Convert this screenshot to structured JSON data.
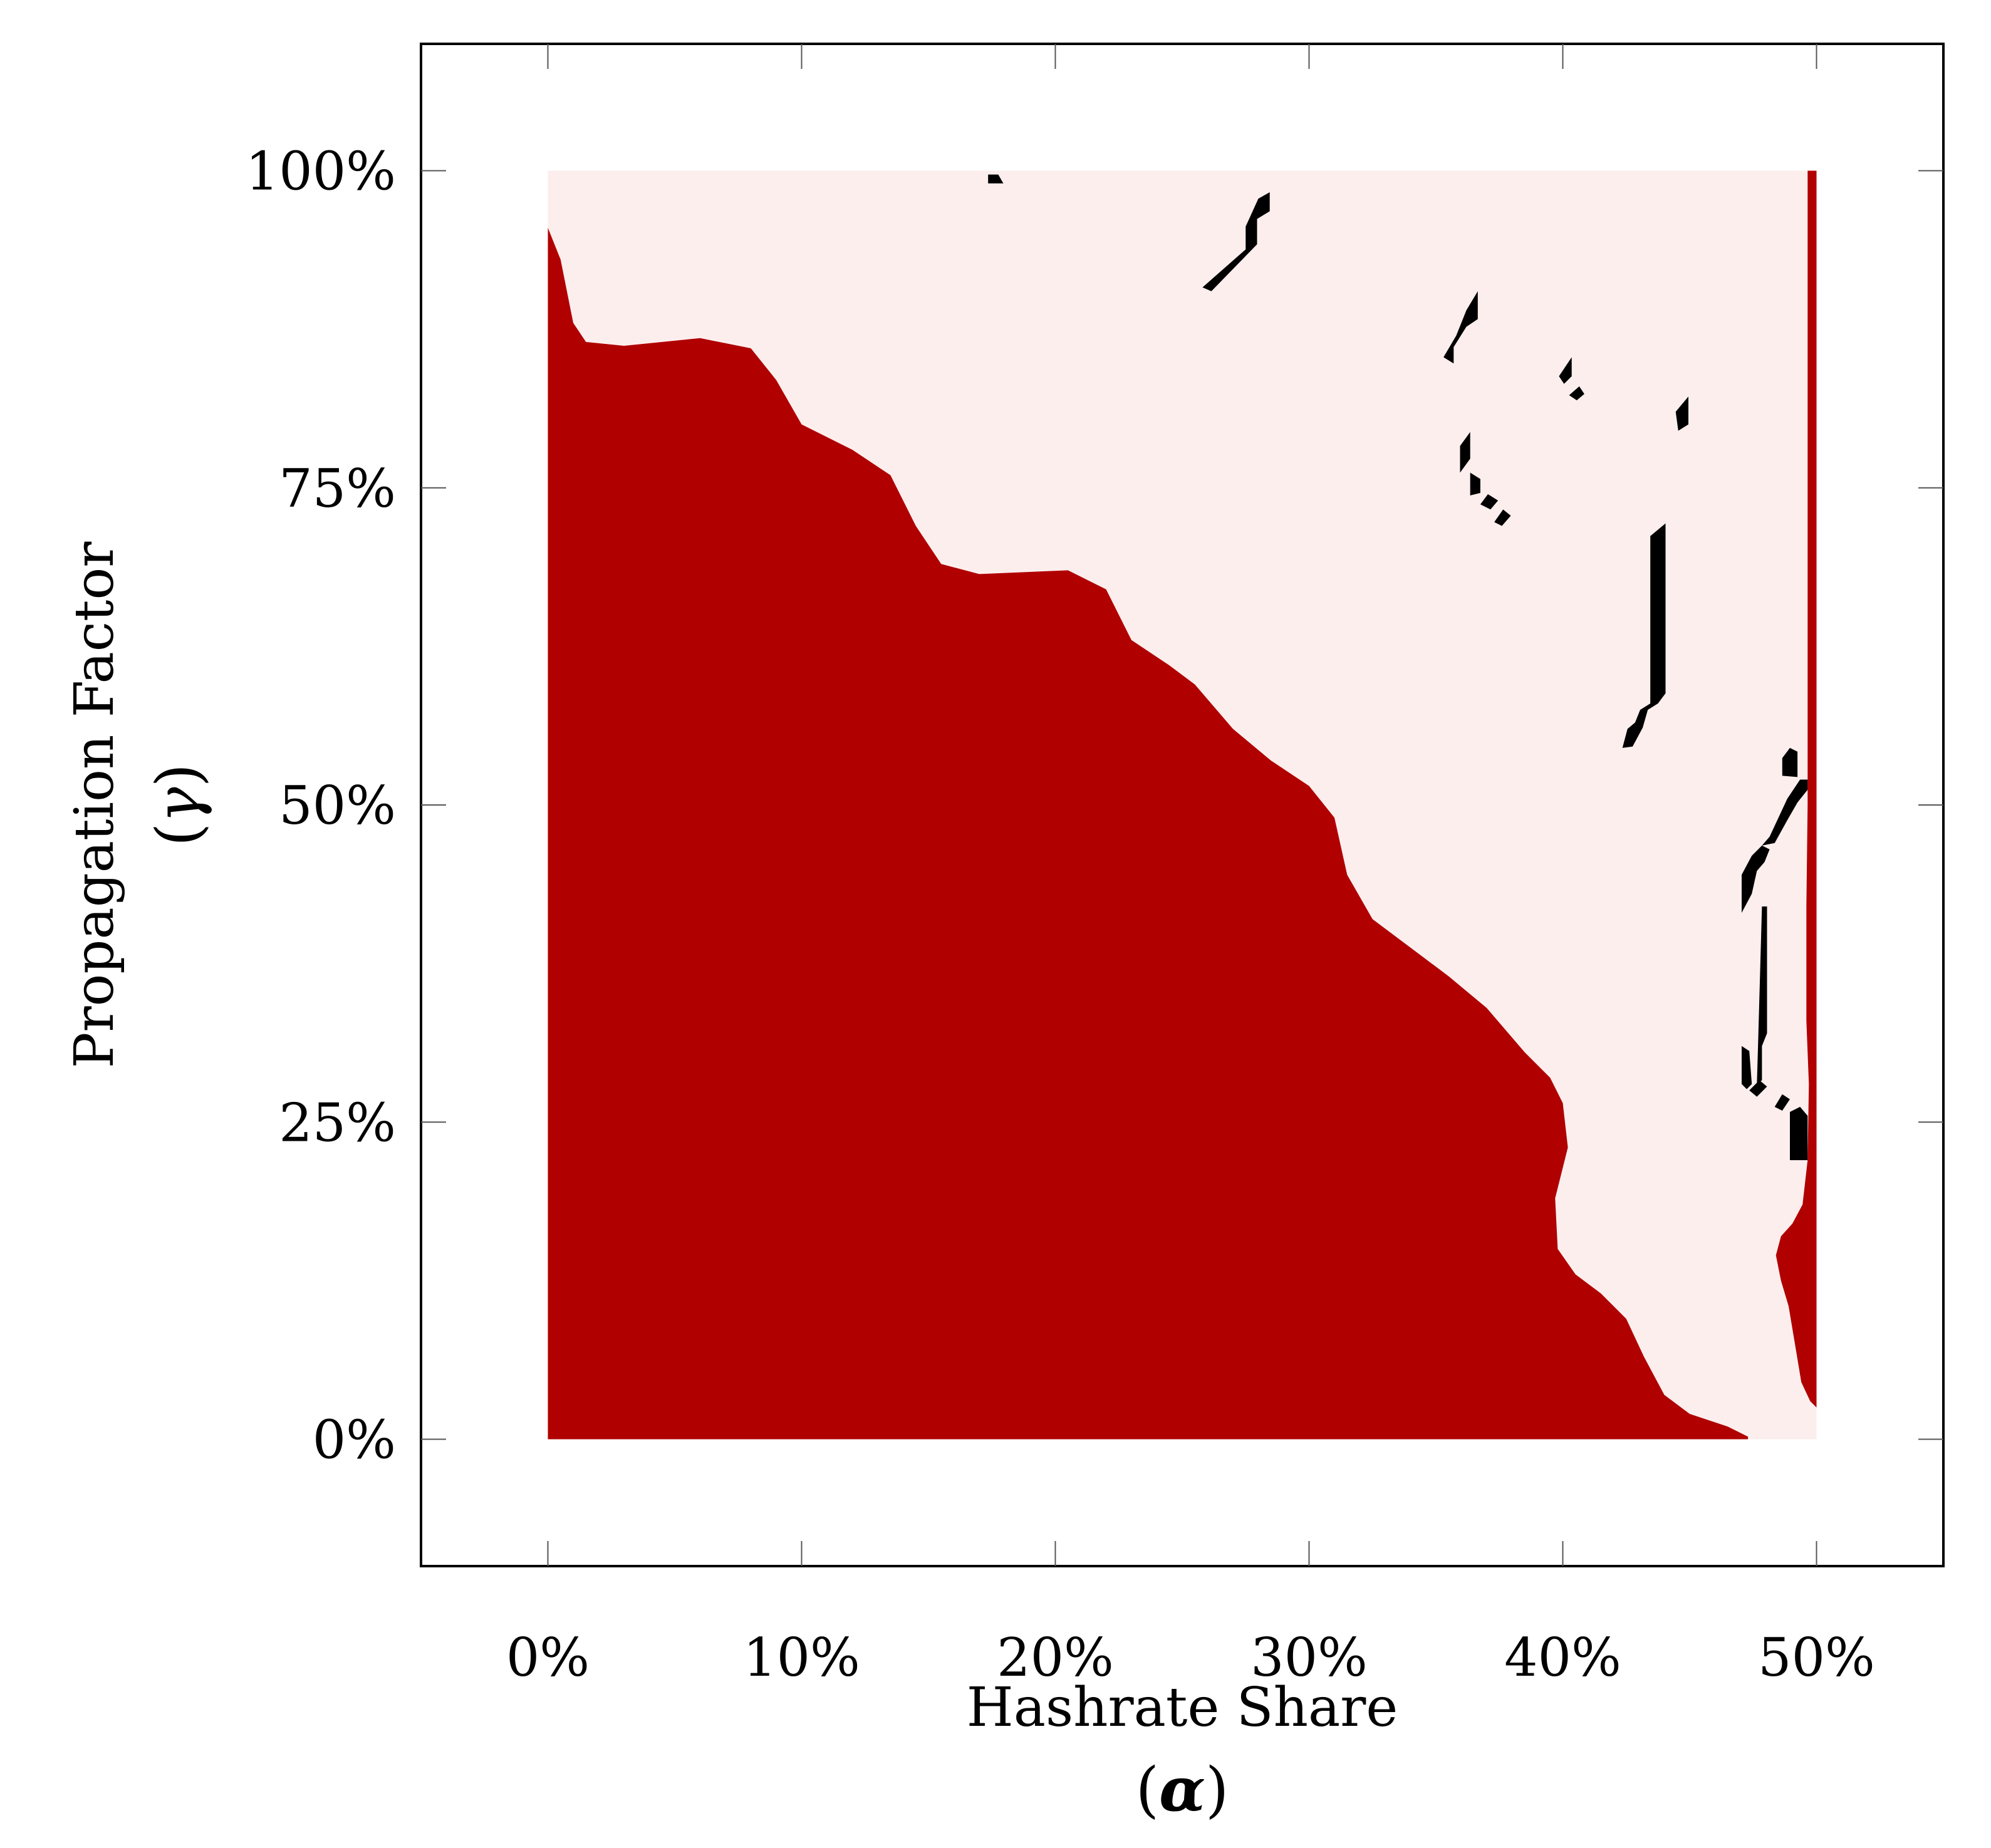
{
  "chart_data": {
    "type": "heatmap",
    "xlabel": "Hashrate Share",
    "xsymbol": "α",
    "ylabel": "Propagation Factor",
    "ysymbol": "γ",
    "xlim": [
      -0.05,
      0.55
    ],
    "ylim": [
      -0.1,
      1.1
    ],
    "x_ticks": [
      0,
      0.1,
      0.2,
      0.3,
      0.4,
      0.5
    ],
    "x_tick_labels": [
      "0%",
      "10%",
      "20%",
      "30%",
      "40%",
      "50%"
    ],
    "y_ticks": [
      0,
      0.25,
      0.5,
      0.75,
      1.0
    ],
    "y_tick_labels": [
      "0%",
      "25%",
      "50%",
      "75%",
      "100%"
    ],
    "grid": false,
    "colors": {
      "region_profitable": "#b00000",
      "region_unprofitable": "#fdeeee",
      "marker": "#000000"
    },
    "data_extent": {
      "x": [
        0,
        0.5
      ],
      "y": [
        0,
        1.0
      ]
    },
    "dark_region_boundary": [
      [
        0.0,
        0.955
      ],
      [
        0.005,
        0.93
      ],
      [
        0.01,
        0.88
      ],
      [
        0.015,
        0.865
      ],
      [
        0.03,
        0.862
      ],
      [
        0.06,
        0.868
      ],
      [
        0.08,
        0.86
      ],
      [
        0.09,
        0.835
      ],
      [
        0.1,
        0.8
      ],
      [
        0.12,
        0.78
      ],
      [
        0.135,
        0.76
      ],
      [
        0.145,
        0.72
      ],
      [
        0.155,
        0.69
      ],
      [
        0.17,
        0.682
      ],
      [
        0.205,
        0.685
      ],
      [
        0.22,
        0.67
      ],
      [
        0.23,
        0.63
      ],
      [
        0.245,
        0.61
      ],
      [
        0.255,
        0.595
      ],
      [
        0.27,
        0.56
      ],
      [
        0.285,
        0.535
      ],
      [
        0.3,
        0.515
      ],
      [
        0.31,
        0.49
      ],
      [
        0.315,
        0.445
      ],
      [
        0.325,
        0.41
      ],
      [
        0.335,
        0.395
      ],
      [
        0.345,
        0.38
      ],
      [
        0.355,
        0.365
      ],
      [
        0.37,
        0.34
      ],
      [
        0.385,
        0.305
      ],
      [
        0.395,
        0.285
      ],
      [
        0.4,
        0.265
      ],
      [
        0.402,
        0.23
      ],
      [
        0.397,
        0.19
      ],
      [
        0.398,
        0.15
      ],
      [
        0.405,
        0.13
      ],
      [
        0.415,
        0.115
      ],
      [
        0.425,
        0.095
      ],
      [
        0.432,
        0.065
      ],
      [
        0.44,
        0.035
      ],
      [
        0.45,
        0.02
      ],
      [
        0.465,
        0.01
      ],
      [
        0.473,
        0.002
      ],
      [
        0.473,
        0.0
      ],
      [
        0.0,
        0.0
      ]
    ],
    "right_edge_strip": [
      [
        0.4965,
        1.0
      ],
      [
        0.5,
        1.0
      ],
      [
        0.5,
        0.025
      ],
      [
        0.4975,
        0.03
      ],
      [
        0.494,
        0.045
      ],
      [
        0.4915,
        0.075
      ],
      [
        0.489,
        0.105
      ],
      [
        0.486,
        0.125
      ],
      [
        0.484,
        0.145
      ],
      [
        0.486,
        0.16
      ],
      [
        0.4905,
        0.17
      ],
      [
        0.4945,
        0.185
      ],
      [
        0.4965,
        0.22
      ],
      [
        0.497,
        0.28
      ],
      [
        0.496,
        0.33
      ],
      [
        0.496,
        0.42
      ],
      [
        0.4965,
        0.5
      ]
    ],
    "markers": [
      [
        [
          0.1735,
          0.99
        ],
        [
          0.1795,
          0.99
        ],
        [
          0.1775,
          0.997
        ],
        [
          0.1735,
          0.997
        ]
      ],
      [
        [
          0.258,
          0.908
        ],
        [
          0.275,
          0.938
        ],
        [
          0.275,
          0.956
        ],
        [
          0.28,
          0.978
        ],
        [
          0.2845,
          0.983
        ],
        [
          0.2845,
          0.968
        ],
        [
          0.2795,
          0.962
        ],
        [
          0.2795,
          0.942
        ],
        [
          0.2615,
          0.905
        ]
      ],
      [
        [
          0.353,
          0.853
        ],
        [
          0.358,
          0.87
        ],
        [
          0.362,
          0.89
        ],
        [
          0.3665,
          0.905
        ],
        [
          0.3665,
          0.883
        ],
        [
          0.362,
          0.877
        ],
        [
          0.357,
          0.861
        ],
        [
          0.357,
          0.848
        ]
      ],
      [
        [
          0.3985,
          0.838
        ],
        [
          0.4035,
          0.853
        ],
        [
          0.4035,
          0.838
        ],
        [
          0.4005,
          0.832
        ]
      ],
      [
        [
          0.4025,
          0.823
        ],
        [
          0.4065,
          0.83
        ],
        [
          0.4085,
          0.824
        ],
        [
          0.4055,
          0.819
        ]
      ],
      [
        [
          0.4455,
          0.795
        ],
        [
          0.4445,
          0.81
        ],
        [
          0.4495,
          0.822
        ],
        [
          0.4495,
          0.8
        ]
      ],
      [
        [
          0.3595,
          0.762
        ],
        [
          0.3595,
          0.783
        ],
        [
          0.3635,
          0.794
        ],
        [
          0.3635,
          0.773
        ]
      ],
      [
        [
          0.3635,
          0.744
        ],
        [
          0.3635,
          0.762
        ],
        [
          0.3675,
          0.757
        ],
        [
          0.3675,
          0.746
        ]
      ],
      [
        [
          0.3675,
          0.737
        ],
        [
          0.3705,
          0.745
        ],
        [
          0.3745,
          0.74
        ],
        [
          0.3715,
          0.733
        ]
      ],
      [
        [
          0.373,
          0.723
        ],
        [
          0.3765,
          0.733
        ],
        [
          0.3795,
          0.728
        ],
        [
          0.376,
          0.72
        ]
      ],
      [
        [
          0.4235,
          0.545
        ],
        [
          0.4255,
          0.56
        ],
        [
          0.4285,
          0.565
        ],
        [
          0.4305,
          0.575
        ],
        [
          0.4345,
          0.58
        ],
        [
          0.4345,
          0.712
        ],
        [
          0.4405,
          0.722
        ],
        [
          0.4405,
          0.588
        ],
        [
          0.4375,
          0.58
        ],
        [
          0.4335,
          0.575
        ],
        [
          0.4315,
          0.561
        ],
        [
          0.4275,
          0.546
        ]
      ],
      [
        [
          0.4765,
          0.28
        ],
        [
          0.477,
          0.313
        ],
        [
          0.4785,
          0.42
        ],
        [
          0.4805,
          0.42
        ],
        [
          0.4805,
          0.32
        ],
        [
          0.4785,
          0.31
        ],
        [
          0.4785,
          0.283
        ]
      ],
      [
        [
          0.4705,
          0.28
        ],
        [
          0.4705,
          0.31
        ],
        [
          0.4735,
          0.306
        ],
        [
          0.4745,
          0.28
        ],
        [
          0.4725,
          0.276
        ]
      ],
      [
        [
          0.4705,
          0.415
        ],
        [
          0.4705,
          0.445
        ],
        [
          0.4745,
          0.46
        ],
        [
          0.4785,
          0.468
        ],
        [
          0.4815,
          0.465
        ],
        [
          0.4795,
          0.455
        ],
        [
          0.4765,
          0.448
        ],
        [
          0.4745,
          0.43
        ]
      ],
      [
        [
          0.4785,
          0.468
        ],
        [
          0.4815,
          0.475
        ],
        [
          0.4885,
          0.505
        ],
        [
          0.4935,
          0.52
        ],
        [
          0.4965,
          0.52
        ],
        [
          0.4965,
          0.512
        ],
        [
          0.4925,
          0.502
        ],
        [
          0.4885,
          0.488
        ],
        [
          0.4835,
          0.47
        ]
      ],
      [
        [
          0.4735,
          0.275
        ],
        [
          0.4775,
          0.283
        ],
        [
          0.4805,
          0.278
        ],
        [
          0.4765,
          0.27
        ]
      ],
      [
        [
          0.4835,
          0.262
        ],
        [
          0.4865,
          0.272
        ],
        [
          0.4895,
          0.268
        ],
        [
          0.4865,
          0.259
        ]
      ],
      [
        [
          0.4895,
          0.22
        ],
        [
          0.4895,
          0.258
        ],
        [
          0.4935,
          0.262
        ],
        [
          0.4965,
          0.255
        ],
        [
          0.4965,
          0.22
        ]
      ],
      [
        [
          0.4865,
          0.523
        ],
        [
          0.4865,
          0.537
        ],
        [
          0.4895,
          0.545
        ],
        [
          0.4925,
          0.542
        ],
        [
          0.4925,
          0.522
        ]
      ]
    ]
  }
}
